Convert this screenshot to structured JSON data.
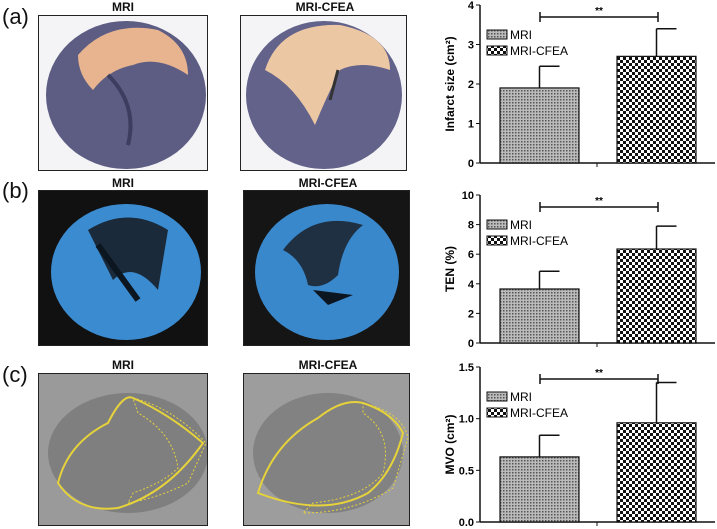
{
  "panels": [
    {
      "label": "(a)",
      "image_titles": [
        "MRI",
        "MRI-CFEA"
      ]
    },
    {
      "label": "(b)",
      "image_titles": [
        "MRI",
        "MRI-CFEA"
      ]
    },
    {
      "label": "(c)",
      "image_titles": [
        "MRI",
        "MRI-CFEA"
      ]
    }
  ],
  "chart_data": [
    {
      "type": "bar",
      "panel": "(a)",
      "categories": [
        "MRI",
        "MRI-CFEA"
      ],
      "values": [
        1.9,
        2.7
      ],
      "error": [
        0.55,
        0.7
      ],
      "ylabel": "Infarct size (cm²)",
      "ylim": [
        0,
        4
      ],
      "yticks": [
        "0",
        "1",
        "2",
        "3",
        "4"
      ],
      "legend": [
        "MRI",
        "MRI-CFEA"
      ],
      "legend_position": "top-left",
      "significance": "**",
      "grid": false
    },
    {
      "type": "bar",
      "panel": "(b)",
      "categories": [
        "MRI",
        "MRI-CFEA"
      ],
      "values": [
        3.65,
        6.35
      ],
      "error": [
        1.2,
        1.55
      ],
      "ylabel": "TEN (%)",
      "ylim": [
        0,
        10
      ],
      "yticks": [
        "0",
        "2",
        "4",
        "6",
        "8",
        "10"
      ],
      "legend": [
        "MRI",
        "MRI-CFEA"
      ],
      "legend_position": "top-left",
      "significance": "**",
      "grid": false
    },
    {
      "type": "bar",
      "panel": "(c)",
      "categories": [
        "MRI",
        "MRI-CFEA"
      ],
      "values": [
        0.63,
        0.96
      ],
      "error": [
        0.21,
        0.39
      ],
      "ylabel": "MVO (cm²)",
      "ylim": [
        0,
        1.5
      ],
      "yticks": [
        "0.0",
        "0.5",
        "1.0",
        "1.5"
      ],
      "legend": [
        "MRI",
        "MRI-CFEA"
      ],
      "legend_position": "top-left",
      "significance": "**",
      "grid": false
    }
  ]
}
